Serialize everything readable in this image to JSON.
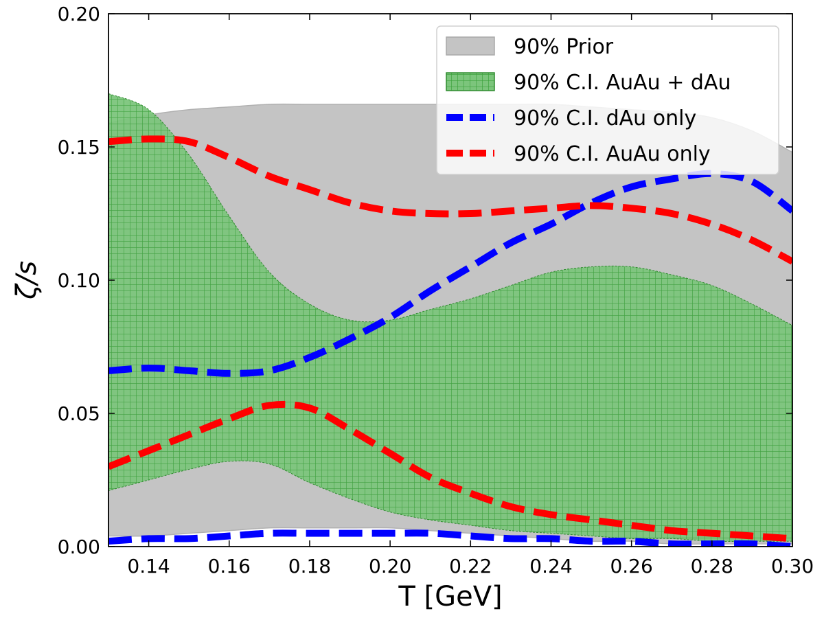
{
  "chart_data": {
    "type": "area",
    "xlabel": "T [GeV]",
    "ylabel": "ζ/s",
    "xlim": [
      0.13,
      0.3
    ],
    "ylim": [
      0.0,
      0.2
    ],
    "xticks": [
      "0.14",
      "0.16",
      "0.18",
      "0.20",
      "0.22",
      "0.24",
      "0.26",
      "0.28",
      "0.30"
    ],
    "yticks": [
      "0.00",
      "0.05",
      "0.10",
      "0.15",
      "0.20"
    ],
    "grid": false,
    "legend_position": "top-right",
    "x": [
      0.13,
      0.14,
      0.15,
      0.16,
      0.17,
      0.18,
      0.19,
      0.2,
      0.21,
      0.22,
      0.23,
      0.24,
      0.25,
      0.26,
      0.27,
      0.28,
      0.29,
      0.3
    ],
    "series": [
      {
        "name": "90% Prior",
        "kind": "band",
        "color": "#c4c4c4",
        "upper": [
          0.159,
          0.162,
          0.164,
          0.165,
          0.166,
          0.166,
          0.166,
          0.166,
          0.166,
          0.166,
          0.166,
          0.166,
          0.165,
          0.164,
          0.163,
          0.161,
          0.156,
          0.148
        ],
        "lower": [
          0.004,
          0.004,
          0.005,
          0.006,
          0.007,
          0.007,
          0.007,
          0.007,
          0.006,
          0.005,
          0.004,
          0.003,
          0.002,
          0.002,
          0.001,
          0.001,
          0.001,
          0.001
        ]
      },
      {
        "name": "90% C.I. AuAu + dAu",
        "kind": "band",
        "color": "#2ca02c",
        "upper": [
          0.17,
          0.164,
          0.147,
          0.124,
          0.103,
          0.091,
          0.085,
          0.085,
          0.089,
          0.093,
          0.098,
          0.103,
          0.105,
          0.105,
          0.102,
          0.098,
          0.091,
          0.083
        ],
        "lower": [
          0.021,
          0.025,
          0.029,
          0.032,
          0.031,
          0.024,
          0.018,
          0.013,
          0.01,
          0.008,
          0.006,
          0.005,
          0.004,
          0.003,
          0.003,
          0.002,
          0.002,
          0.002
        ]
      },
      {
        "name": "90% C.I. dAu only",
        "kind": "dashed-band",
        "color": "#0000ff",
        "upper": [
          0.066,
          0.067,
          0.066,
          0.065,
          0.066,
          0.071,
          0.078,
          0.086,
          0.096,
          0.105,
          0.114,
          0.121,
          0.129,
          0.135,
          0.138,
          0.14,
          0.137,
          0.126
        ],
        "lower": [
          0.002,
          0.003,
          0.003,
          0.004,
          0.005,
          0.005,
          0.005,
          0.005,
          0.005,
          0.004,
          0.003,
          0.003,
          0.002,
          0.002,
          0.001,
          0.001,
          0.001,
          0.0
        ]
      },
      {
        "name": "90% C.I. AuAu only",
        "kind": "dashed-band",
        "color": "#ff0000",
        "upper": [
          0.152,
          0.153,
          0.152,
          0.146,
          0.139,
          0.134,
          0.129,
          0.126,
          0.125,
          0.125,
          0.126,
          0.127,
          0.128,
          0.127,
          0.125,
          0.121,
          0.115,
          0.107
        ],
        "lower": [
          0.03,
          0.036,
          0.042,
          0.048,
          0.053,
          0.052,
          0.044,
          0.035,
          0.026,
          0.02,
          0.015,
          0.012,
          0.01,
          0.008,
          0.006,
          0.005,
          0.004,
          0.003
        ]
      }
    ]
  }
}
